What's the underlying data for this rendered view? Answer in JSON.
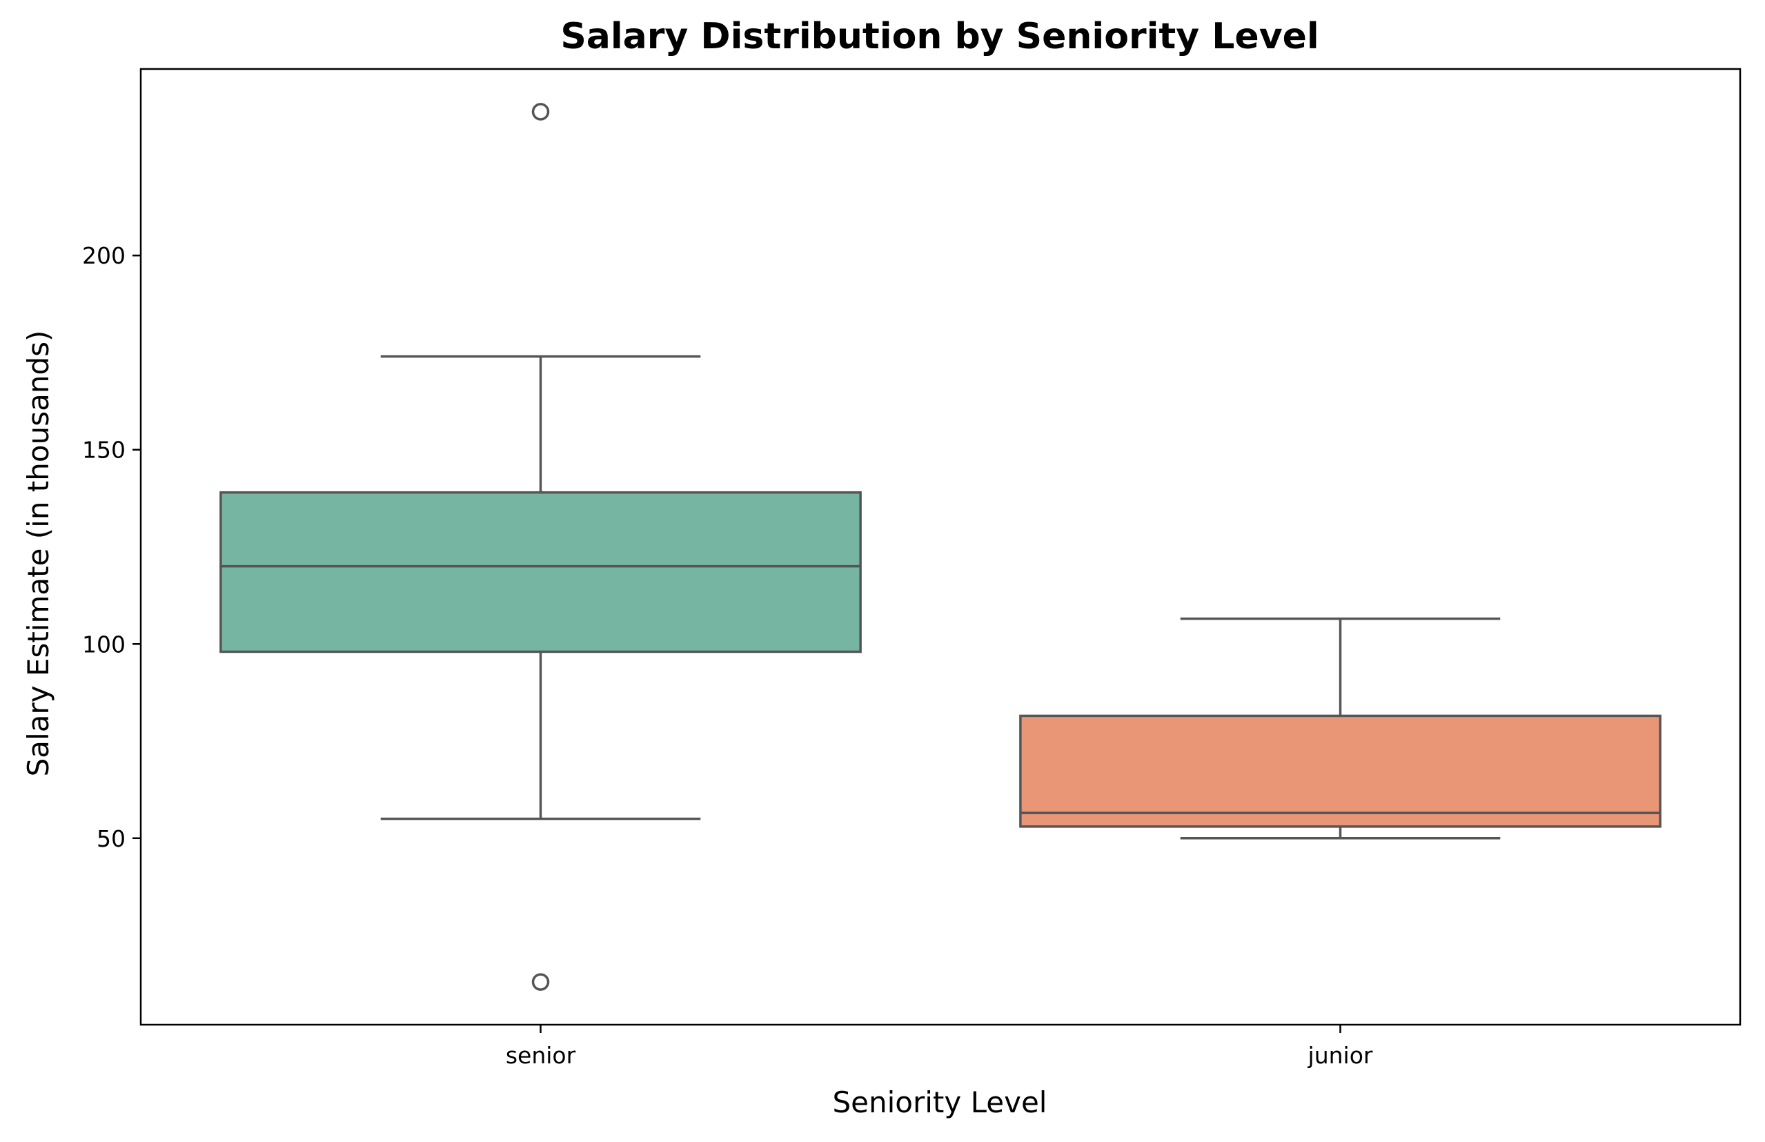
{
  "chart_data": {
    "type": "box",
    "title": "Salary Distribution by Seniority Level",
    "xlabel": "Seniority Level",
    "ylabel": "Salary Estimate (in thousands)",
    "ylim": [
      2,
      248
    ],
    "yticks": [
      50,
      100,
      150,
      200
    ],
    "grid": false,
    "categories": [
      "senior",
      "junior"
    ],
    "series": [
      {
        "category": "senior",
        "color": "#76b5a2",
        "whisker_low": 55,
        "q1": 98,
        "median": 120,
        "q3": 139,
        "whisker_high": 174,
        "outliers": [
          237,
          13
        ]
      },
      {
        "category": "junior",
        "color": "#e89675",
        "whisker_low": 50,
        "q1": 53,
        "median": 56.5,
        "q3": 81.5,
        "whisker_high": 106.5,
        "outliers": []
      }
    ],
    "line_color": "#555555"
  }
}
